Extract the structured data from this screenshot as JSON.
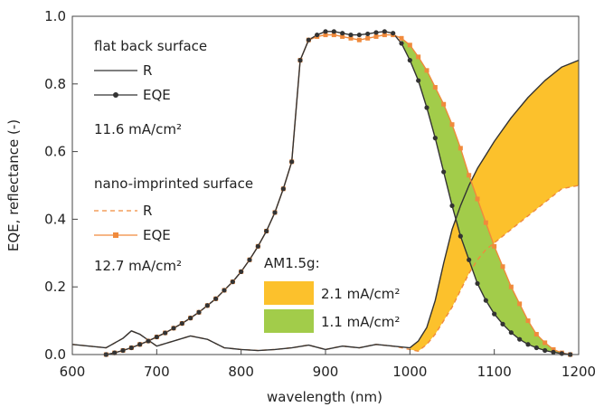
{
  "chart_data": {
    "type": "line",
    "xlabel": "wavelength (nm)",
    "ylabel": "EQE, reflectance (-)",
    "xlim": [
      600,
      1200
    ],
    "ylim": [
      0,
      1.0
    ],
    "xticks": [
      600,
      700,
      800,
      900,
      1000,
      1100,
      1200
    ],
    "xtick_labels": [
      "600",
      "700",
      "800",
      "900",
      "1000",
      "1100",
      "1200"
    ],
    "yticks": [
      0,
      0.2,
      0.4,
      0.6,
      0.8,
      1.0
    ],
    "ytick_labels": [
      "0.0",
      "0.2",
      "0.4",
      "0.6",
      "0.8",
      "1.0"
    ],
    "grid": false,
    "colors": {
      "flat": "#333333",
      "nano": "#f08a3c",
      "fill_R": "#fcc12c",
      "fill_EQE": "#a2cc4a"
    },
    "legend": {
      "group1_title": "flat back surface",
      "group1_R": "R",
      "group1_EQE": "EQE",
      "group1_jsc": "11.6 mA/cm²",
      "group2_title": "nano-imprinted surface",
      "group2_R": "R",
      "group2_EQE": "EQE",
      "group2_jsc": "12.7 mA/cm²",
      "am_title": "AM1.5g:",
      "am_R_gain": "2.1 mA/cm²",
      "am_EQE_gain": "1.1 mA/cm²"
    },
    "series": [
      {
        "name": "R",
        "group": "flat back surface",
        "style": "solid",
        "x": [
          600,
          620,
          640,
          660,
          670,
          680,
          700,
          720,
          740,
          760,
          780,
          800,
          820,
          840,
          860,
          880,
          900,
          920,
          940,
          960,
          980,
          1000,
          1010,
          1020,
          1030,
          1040,
          1050,
          1060,
          1070,
          1080,
          1090,
          1100,
          1120,
          1140,
          1160,
          1180,
          1200
        ],
        "y": [
          0.03,
          0.025,
          0.02,
          0.048,
          0.07,
          0.06,
          0.025,
          0.04,
          0.055,
          0.045,
          0.02,
          0.015,
          0.012,
          0.015,
          0.02,
          0.028,
          0.015,
          0.025,
          0.02,
          0.03,
          0.025,
          0.02,
          0.04,
          0.08,
          0.16,
          0.27,
          0.37,
          0.44,
          0.5,
          0.55,
          0.59,
          0.63,
          0.7,
          0.76,
          0.81,
          0.85,
          0.87
        ]
      },
      {
        "name": "EQE",
        "group": "flat back surface",
        "style": "solid-dots",
        "x": [
          640,
          650,
          660,
          670,
          680,
          690,
          700,
          710,
          720,
          730,
          740,
          750,
          760,
          770,
          780,
          790,
          800,
          810,
          820,
          830,
          840,
          850,
          860,
          870,
          880,
          890,
          900,
          910,
          920,
          930,
          940,
          950,
          960,
          970,
          980,
          990,
          1000,
          1010,
          1020,
          1030,
          1040,
          1050,
          1060,
          1070,
          1080,
          1090,
          1100,
          1110,
          1120,
          1130,
          1140,
          1150,
          1160,
          1170,
          1180,
          1190
        ],
        "y": [
          0.0,
          0.005,
          0.012,
          0.02,
          0.03,
          0.04,
          0.052,
          0.064,
          0.078,
          0.092,
          0.108,
          0.125,
          0.145,
          0.165,
          0.19,
          0.215,
          0.245,
          0.28,
          0.32,
          0.365,
          0.42,
          0.49,
          0.57,
          0.87,
          0.93,
          0.945,
          0.955,
          0.955,
          0.95,
          0.945,
          0.945,
          0.948,
          0.952,
          0.955,
          0.95,
          0.92,
          0.87,
          0.81,
          0.73,
          0.64,
          0.54,
          0.44,
          0.35,
          0.28,
          0.21,
          0.16,
          0.12,
          0.09,
          0.065,
          0.045,
          0.03,
          0.02,
          0.012,
          0.007,
          0.003,
          0.0
        ]
      },
      {
        "name": "R",
        "group": "nano-imprinted surface",
        "style": "dashed",
        "x": [
          600,
          620,
          640,
          660,
          670,
          680,
          700,
          720,
          740,
          760,
          780,
          800,
          820,
          840,
          860,
          880,
          900,
          920,
          940,
          960,
          980,
          1000,
          1010,
          1020,
          1030,
          1040,
          1050,
          1060,
          1070,
          1080,
          1090,
          1100,
          1120,
          1140,
          1160,
          1180,
          1200
        ],
        "y": [
          0.03,
          0.025,
          0.02,
          0.048,
          0.07,
          0.06,
          0.025,
          0.04,
          0.055,
          0.045,
          0.02,
          0.015,
          0.012,
          0.015,
          0.02,
          0.028,
          0.015,
          0.025,
          0.02,
          0.03,
          0.025,
          0.015,
          0.01,
          0.03,
          0.06,
          0.1,
          0.14,
          0.19,
          0.24,
          0.28,
          0.31,
          0.33,
          0.37,
          0.41,
          0.45,
          0.49,
          0.5
        ]
      },
      {
        "name": "EQE",
        "group": "nano-imprinted surface",
        "style": "solid-squares",
        "x": [
          640,
          650,
          660,
          670,
          680,
          690,
          700,
          710,
          720,
          730,
          740,
          750,
          760,
          770,
          780,
          790,
          800,
          810,
          820,
          830,
          840,
          850,
          860,
          870,
          880,
          890,
          900,
          910,
          920,
          930,
          940,
          950,
          960,
          970,
          980,
          990,
          1000,
          1010,
          1020,
          1030,
          1040,
          1050,
          1060,
          1070,
          1080,
          1090,
          1100,
          1110,
          1120,
          1130,
          1140,
          1150,
          1160,
          1170,
          1180,
          1190
        ],
        "y": [
          0.0,
          0.005,
          0.012,
          0.02,
          0.03,
          0.04,
          0.052,
          0.064,
          0.078,
          0.092,
          0.108,
          0.125,
          0.145,
          0.165,
          0.19,
          0.215,
          0.245,
          0.28,
          0.32,
          0.365,
          0.42,
          0.49,
          0.57,
          0.87,
          0.93,
          0.94,
          0.945,
          0.945,
          0.94,
          0.935,
          0.93,
          0.935,
          0.94,
          0.945,
          0.945,
          0.935,
          0.915,
          0.88,
          0.84,
          0.79,
          0.74,
          0.68,
          0.61,
          0.53,
          0.46,
          0.39,
          0.32,
          0.26,
          0.2,
          0.15,
          0.1,
          0.06,
          0.035,
          0.015,
          0.005,
          0.0
        ]
      }
    ]
  }
}
